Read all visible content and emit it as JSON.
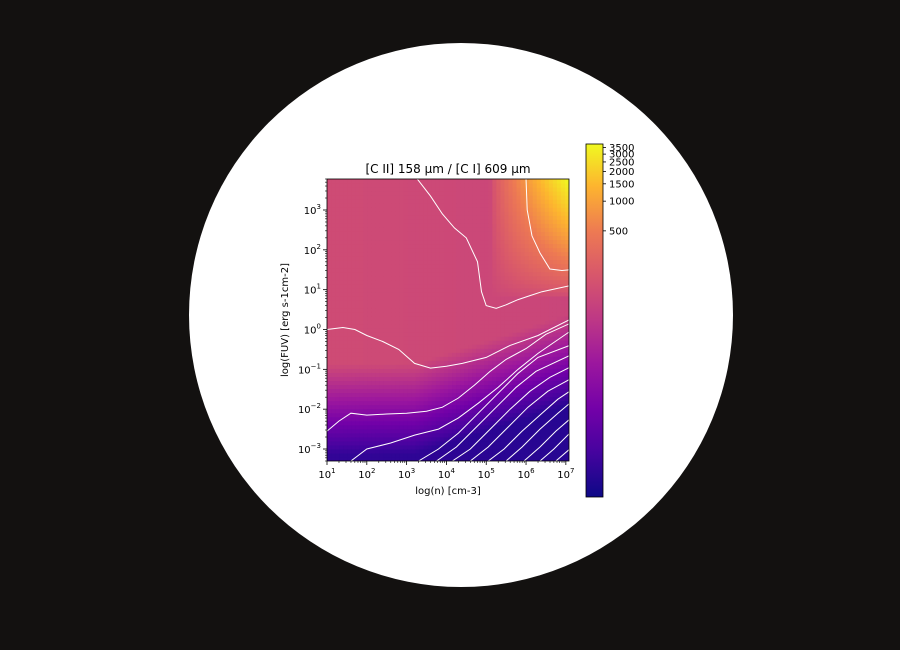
{
  "chart_data": {
    "type": "heatmap",
    "title": "[C II] 158 μm / [C I] 609 μm",
    "xlabel": "log(n) [cm-3]",
    "ylabel": "log(FUV) [erg s-1cm-2]",
    "x_scale": "log",
    "y_scale": "log",
    "xlim": [
      10,
      12000000
    ],
    "ylim": [
      0.0005,
      6000
    ],
    "x_ticks": [
      {
        "exp": "1",
        "label": "10^1"
      },
      {
        "exp": "2",
        "label": "10^2"
      },
      {
        "exp": "3",
        "label": "10^3"
      },
      {
        "exp": "4",
        "label": "10^4"
      },
      {
        "exp": "5",
        "label": "10^5"
      },
      {
        "exp": "6",
        "label": "10^6"
      },
      {
        "exp": "7",
        "label": "10^7"
      }
    ],
    "y_ticks": [
      {
        "exp": "−3",
        "label": "10^-3"
      },
      {
        "exp": "−2",
        "label": "10^-2"
      },
      {
        "exp": "−1",
        "label": "10^-1"
      },
      {
        "exp": "0",
        "label": "10^0"
      },
      {
        "exp": "1",
        "label": "10^1"
      },
      {
        "exp": "2",
        "label": "10^2"
      },
      {
        "exp": "3",
        "label": "10^3"
      }
    ],
    "colorbar": {
      "colormap": "plasma",
      "scale": "log",
      "range": [
        1,
        3800
      ],
      "ticks": [
        "500",
        "1000",
        "1500",
        "2000",
        "2500",
        "3000",
        "3500"
      ]
    },
    "contour_color": "#ffffff",
    "contours": [
      [
        [
          3.25,
          3.8
        ],
        [
          3.6,
          3.35
        ],
        [
          3.9,
          2.9
        ],
        [
          4.2,
          2.55
        ],
        [
          4.5,
          2.3
        ],
        [
          4.78,
          1.7
        ],
        [
          4.88,
          0.95
        ],
        [
          5.0,
          0.6
        ],
        [
          5.25,
          0.53
        ],
        [
          5.5,
          0.62
        ],
        [
          5.8,
          0.75
        ],
        [
          6.1,
          0.85
        ],
        [
          6.4,
          0.95
        ],
        [
          7.1,
          1.1
        ]
      ],
      [
        [
          6.0,
          3.8
        ],
        [
          6.03,
          3.0
        ],
        [
          6.15,
          2.35
        ],
        [
          6.35,
          1.92
        ],
        [
          6.6,
          1.52
        ],
        [
          6.9,
          1.48
        ],
        [
          7.1,
          1.5
        ]
      ],
      [
        [
          1.0,
          0.0
        ],
        [
          1.4,
          0.05
        ],
        [
          1.7,
          0.0
        ],
        [
          2.0,
          -0.15
        ],
        [
          2.4,
          -0.3
        ],
        [
          2.8,
          -0.5
        ],
        [
          3.2,
          -0.85
        ],
        [
          3.6,
          -0.97
        ],
        [
          4.0,
          -0.92
        ],
        [
          4.4,
          -0.85
        ],
        [
          5.0,
          -0.7
        ],
        [
          5.6,
          -0.4
        ],
        [
          6.3,
          -0.15
        ],
        [
          7.1,
          0.25
        ]
      ],
      [
        [
          1.0,
          -2.55
        ],
        [
          1.3,
          -2.3
        ],
        [
          1.6,
          -2.1
        ],
        [
          2.0,
          -2.15
        ],
        [
          2.5,
          -2.12
        ],
        [
          3.0,
          -2.1
        ],
        [
          3.5,
          -2.05
        ],
        [
          3.9,
          -1.95
        ],
        [
          4.3,
          -1.72
        ],
        [
          4.7,
          -1.4
        ],
        [
          5.1,
          -1.05
        ],
        [
          5.5,
          -0.75
        ],
        [
          6.0,
          -0.48
        ],
        [
          6.5,
          -0.12
        ],
        [
          7.1,
          0.15
        ]
      ],
      [
        [
          1.6,
          -3.3
        ],
        [
          2.0,
          -3.0
        ],
        [
          2.6,
          -2.85
        ],
        [
          3.2,
          -2.65
        ],
        [
          3.8,
          -2.5
        ],
        [
          4.3,
          -2.22
        ],
        [
          4.8,
          -1.85
        ],
        [
          5.3,
          -1.45
        ],
        [
          5.8,
          -1.0
        ],
        [
          6.3,
          -0.6
        ],
        [
          7.1,
          -0.05
        ]
      ],
      [
        [
          3.3,
          -3.3
        ],
        [
          3.8,
          -3.0
        ],
        [
          4.3,
          -2.6
        ],
        [
          4.8,
          -2.1
        ],
        [
          5.3,
          -1.6
        ],
        [
          5.8,
          -1.1
        ],
        [
          6.3,
          -0.7
        ],
        [
          7.1,
          -0.4
        ]
      ],
      [
        [
          3.75,
          -3.3
        ],
        [
          4.25,
          -2.95
        ],
        [
          4.75,
          -2.45
        ],
        [
          5.25,
          -1.95
        ],
        [
          5.75,
          -1.45
        ],
        [
          6.25,
          -1.05
        ],
        [
          7.1,
          -0.65
        ]
      ],
      [
        [
          4.15,
          -3.3
        ],
        [
          4.6,
          -3.0
        ],
        [
          5.1,
          -2.5
        ],
        [
          5.6,
          -2.0
        ],
        [
          6.1,
          -1.55
        ],
        [
          6.6,
          -1.2
        ],
        [
          7.1,
          -0.95
        ]
      ],
      [
        [
          4.6,
          -3.3
        ],
        [
          5.05,
          -2.95
        ],
        [
          5.55,
          -2.45
        ],
        [
          6.05,
          -1.95
        ],
        [
          6.55,
          -1.55
        ],
        [
          7.1,
          -1.25
        ]
      ],
      [
        [
          5.05,
          -3.3
        ],
        [
          5.45,
          -3.0
        ],
        [
          5.9,
          -2.55
        ],
        [
          6.4,
          -2.1
        ],
        [
          6.8,
          -1.75
        ],
        [
          7.1,
          -1.55
        ]
      ],
      [
        [
          5.5,
          -3.3
        ],
        [
          5.9,
          -2.95
        ],
        [
          6.35,
          -2.5
        ],
        [
          6.8,
          -2.1
        ],
        [
          7.1,
          -1.85
        ]
      ],
      [
        [
          5.95,
          -3.3
        ],
        [
          6.35,
          -2.95
        ],
        [
          6.75,
          -2.55
        ],
        [
          7.1,
          -2.25
        ]
      ],
      [
        [
          6.35,
          -3.3
        ],
        [
          6.7,
          -3.0
        ],
        [
          7.1,
          -2.6
        ]
      ],
      [
        [
          6.75,
          -3.3
        ],
        [
          7.1,
          -3.0
        ]
      ]
    ]
  }
}
